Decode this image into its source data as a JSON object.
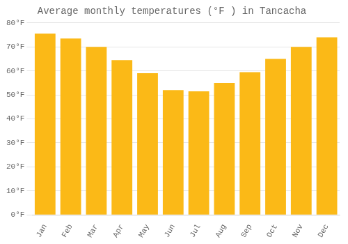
{
  "chart_data": {
    "type": "bar",
    "title": "Average monthly temperatures (°F ) in Tancacha",
    "categories": [
      "Jan",
      "Feb",
      "Mar",
      "Apr",
      "May",
      "Jun",
      "Jul",
      "Aug",
      "Sep",
      "Oct",
      "Nov",
      "Dec"
    ],
    "values": [
      75.5,
      73.5,
      70.0,
      64.5,
      59.0,
      52.0,
      51.5,
      55.0,
      59.5,
      65.0,
      70.0,
      74.0
    ],
    "color": "#FBB917",
    "ylim": [
      0,
      80
    ],
    "yticks": [
      {
        "value": 0,
        "label": "0°F"
      },
      {
        "value": 10,
        "label": "10°F"
      },
      {
        "value": 20,
        "label": "20°F"
      },
      {
        "value": 30,
        "label": "30°F"
      },
      {
        "value": 40,
        "label": "40°F"
      },
      {
        "value": 50,
        "label": "50°F"
      },
      {
        "value": 60,
        "label": "60°F"
      },
      {
        "value": 70,
        "label": "70°F"
      },
      {
        "value": 80,
        "label": "80°F"
      }
    ],
    "grid": true
  }
}
